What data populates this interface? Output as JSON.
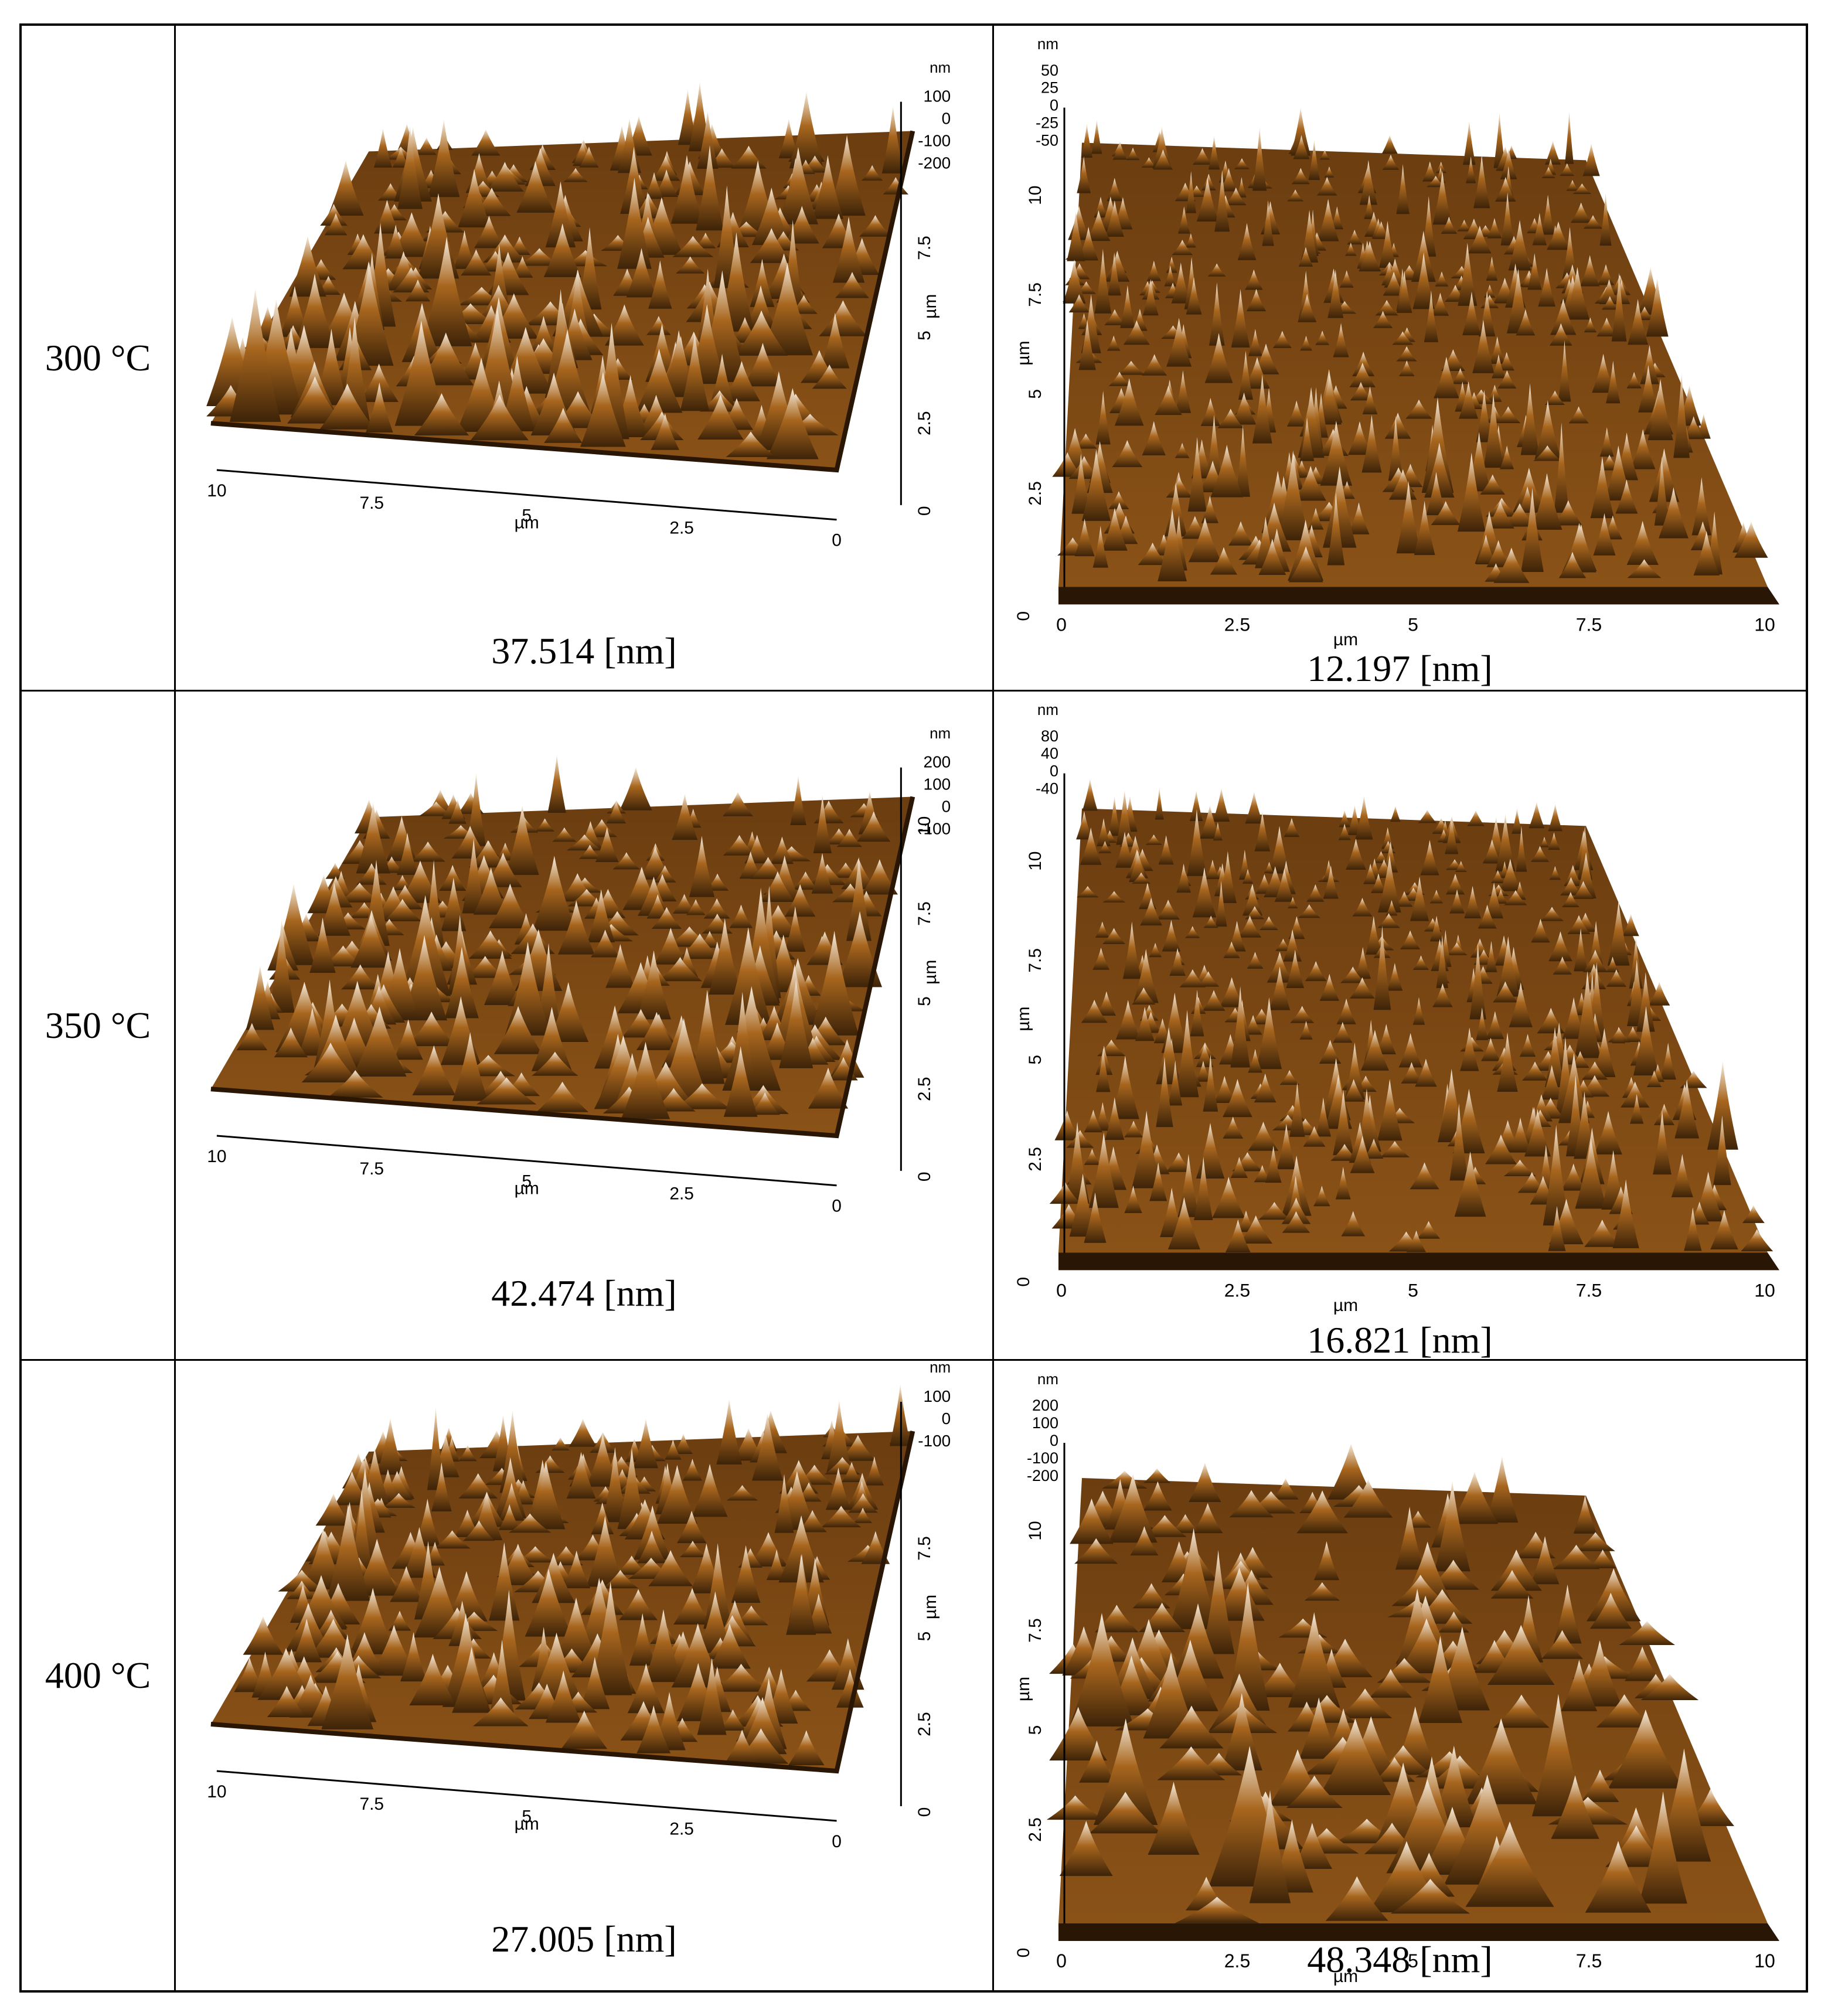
{
  "rows": [
    {
      "temperature": "300 °C",
      "left": {
        "caption": "37.514 [nm]",
        "z_unit": "nm",
        "z_ticks": [
          "100",
          "0",
          "-100",
          "-200"
        ],
        "y_unit": "µm",
        "y_ticks": [
          "0",
          "2.5",
          "5",
          "7.5"
        ],
        "x_unit": "µm",
        "x_ticks": [
          "10",
          "7.5",
          "5",
          "2.5",
          "0"
        ],
        "y_zero": "0"
      },
      "right": {
        "caption": "12.197 [nm]",
        "z_unit": "nm",
        "z_ticks": [
          "50",
          "25",
          "0",
          "-25",
          "-50"
        ],
        "y_unit": "µm",
        "y_ticks": [
          "2.5",
          "5",
          "7.5",
          "10"
        ],
        "x_unit": "µm",
        "x_ticks": [
          "0",
          "2.5",
          "5",
          "7.5",
          "10"
        ],
        "y_zero": "0"
      }
    },
    {
      "temperature": "350 °C",
      "left": {
        "caption": "42.474 [nm]",
        "z_unit": "nm",
        "z_ticks": [
          "200",
          "100",
          "0",
          "-100"
        ],
        "y_unit": "µm",
        "y_ticks": [
          "0",
          "2.5",
          "5",
          "7.5",
          "10"
        ],
        "x_unit": "µm",
        "x_ticks": [
          "10",
          "7.5",
          "5",
          "2.5",
          "0"
        ],
        "y_zero": "0"
      },
      "right": {
        "caption": "16.821 [nm]",
        "z_unit": "nm",
        "z_ticks": [
          "80",
          "40",
          "0",
          "-40"
        ],
        "y_unit": "µm",
        "y_ticks": [
          "2.5",
          "5",
          "7.5",
          "10"
        ],
        "x_unit": "µm",
        "x_ticks": [
          "0",
          "2.5",
          "5",
          "7.5",
          "10"
        ],
        "y_zero": "0"
      }
    },
    {
      "temperature": "400 °C",
      "left": {
        "caption": "27.005 [nm]",
        "z_unit": "nm",
        "z_ticks": [
          "100",
          "0",
          "-100"
        ],
        "y_unit": "µm",
        "y_ticks": [
          "0",
          "2.5",
          "5",
          "7.5"
        ],
        "x_unit": "µm",
        "x_ticks": [
          "10",
          "7.5",
          "5",
          "2.5",
          "0"
        ],
        "y_zero": "0"
      },
      "right": {
        "caption": "48.348 [nm]",
        "z_unit": "nm",
        "z_ticks": [
          "200",
          "100",
          "0",
          "-100",
          "-200"
        ],
        "y_unit": "µm",
        "y_ticks": [
          "2.5",
          "5",
          "7.5",
          "10"
        ],
        "x_unit": "µm",
        "x_ticks": [
          "0",
          "2.5",
          "5",
          "7.5",
          "10"
        ],
        "y_zero": "0"
      }
    }
  ],
  "colors": {
    "surface_dark": "#3d2308",
    "surface_mid": "#a8661e",
    "surface_light": "#f7efe2",
    "border": "#000000"
  }
}
